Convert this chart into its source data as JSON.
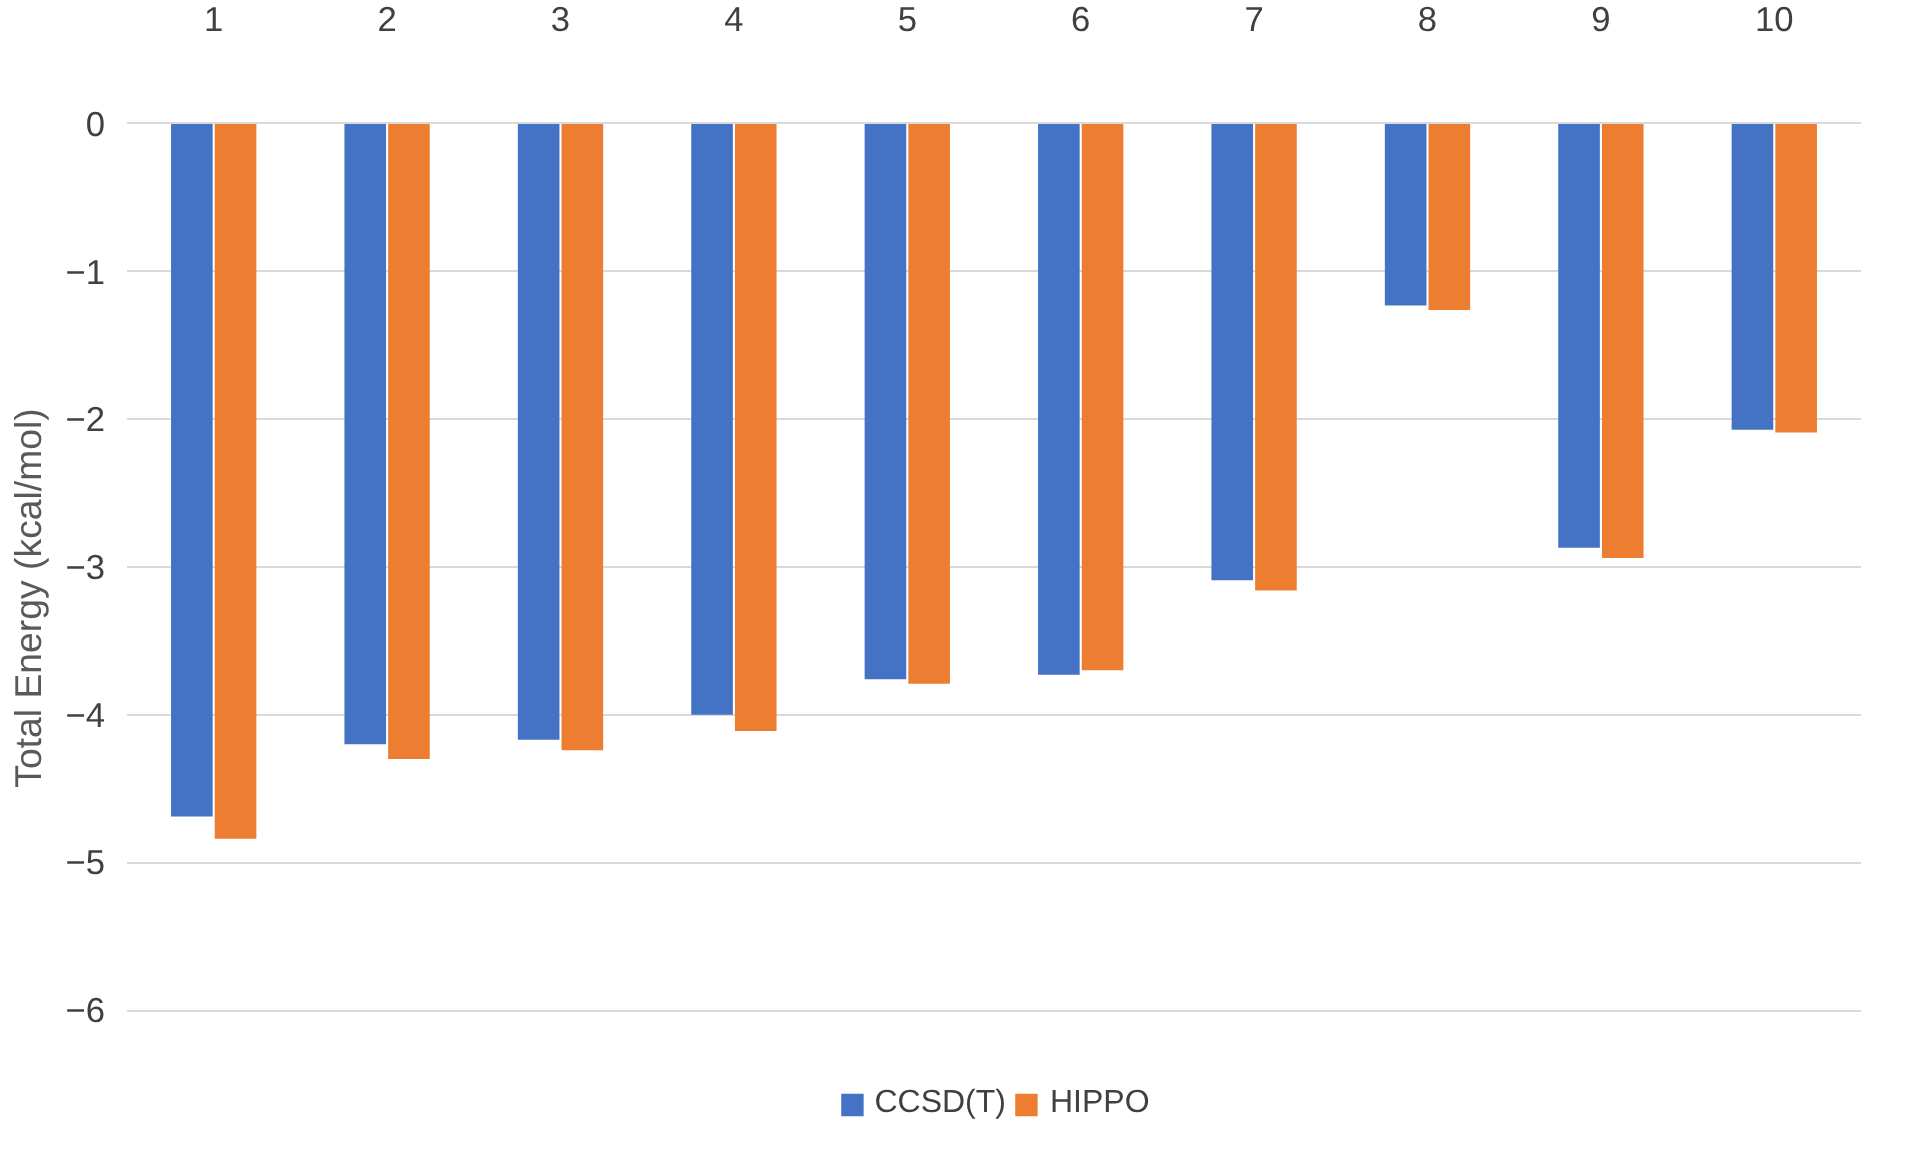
{
  "chart_data": {
    "type": "bar",
    "ylabel": "Total Energy (kcal/mol)",
    "categories": [
      "1",
      "2",
      "3",
      "4",
      "5",
      "6",
      "7",
      "8",
      "9",
      "10"
    ],
    "series": [
      {
        "name": "CCSD(T)",
        "color": "#4472c4",
        "values": [
          -4.69,
          -4.2,
          -4.17,
          -4.0,
          -3.76,
          -3.73,
          -3.09,
          -1.23,
          -2.87,
          -2.07
        ]
      },
      {
        "name": "HIPPO",
        "color": "#ed7d31",
        "values": [
          -4.84,
          -4.3,
          -4.24,
          -4.11,
          -3.79,
          -3.7,
          -3.16,
          -1.26,
          -2.94,
          -2.09
        ]
      }
    ],
    "ylim": [
      -6,
      0
    ],
    "yticks": [
      -6,
      -5,
      -4,
      -3,
      -2,
      -1,
      0
    ],
    "grid": "y",
    "legend": "bottom"
  }
}
